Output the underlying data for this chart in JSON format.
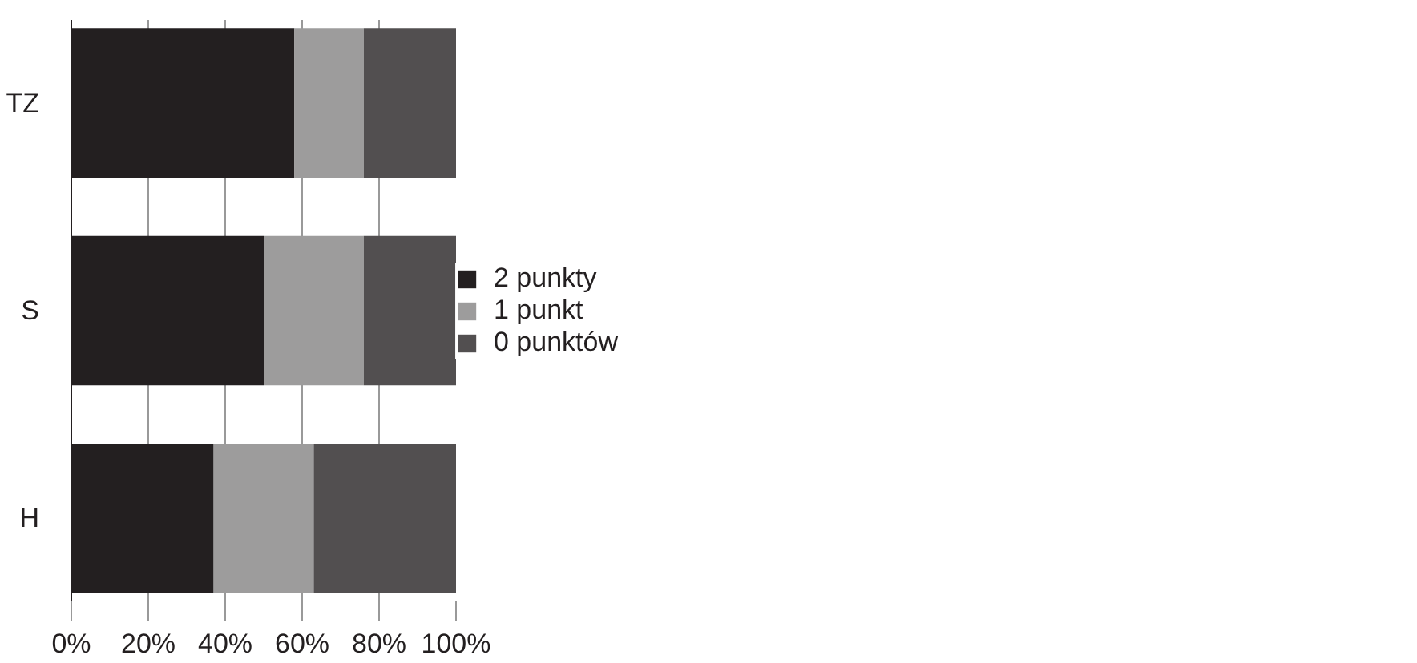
{
  "chart_data": {
    "type": "bar",
    "orientation": "horizontal",
    "stacked": true,
    "categories": [
      "TZ",
      "S",
      "H"
    ],
    "series": [
      {
        "name": "2 punkty",
        "color": "#231f20",
        "values": [
          58,
          50,
          37
        ]
      },
      {
        "name": "1 punkt",
        "color": "#9d9c9c",
        "values": [
          18,
          26,
          26
        ]
      },
      {
        "name": "0 punktów",
        "color": "#524f50",
        "values": [
          24,
          24,
          37
        ]
      }
    ],
    "xlim": [
      0,
      100
    ],
    "xticks": [
      {
        "value": 0,
        "label": "0%"
      },
      {
        "value": 20,
        "label": "20%"
      },
      {
        "value": 40,
        "label": "40%"
      },
      {
        "value": 60,
        "label": "60%"
      },
      {
        "value": 80,
        "label": "80%"
      },
      {
        "value": 100,
        "label": "100%"
      }
    ],
    "grid": "x",
    "legend": "right"
  }
}
